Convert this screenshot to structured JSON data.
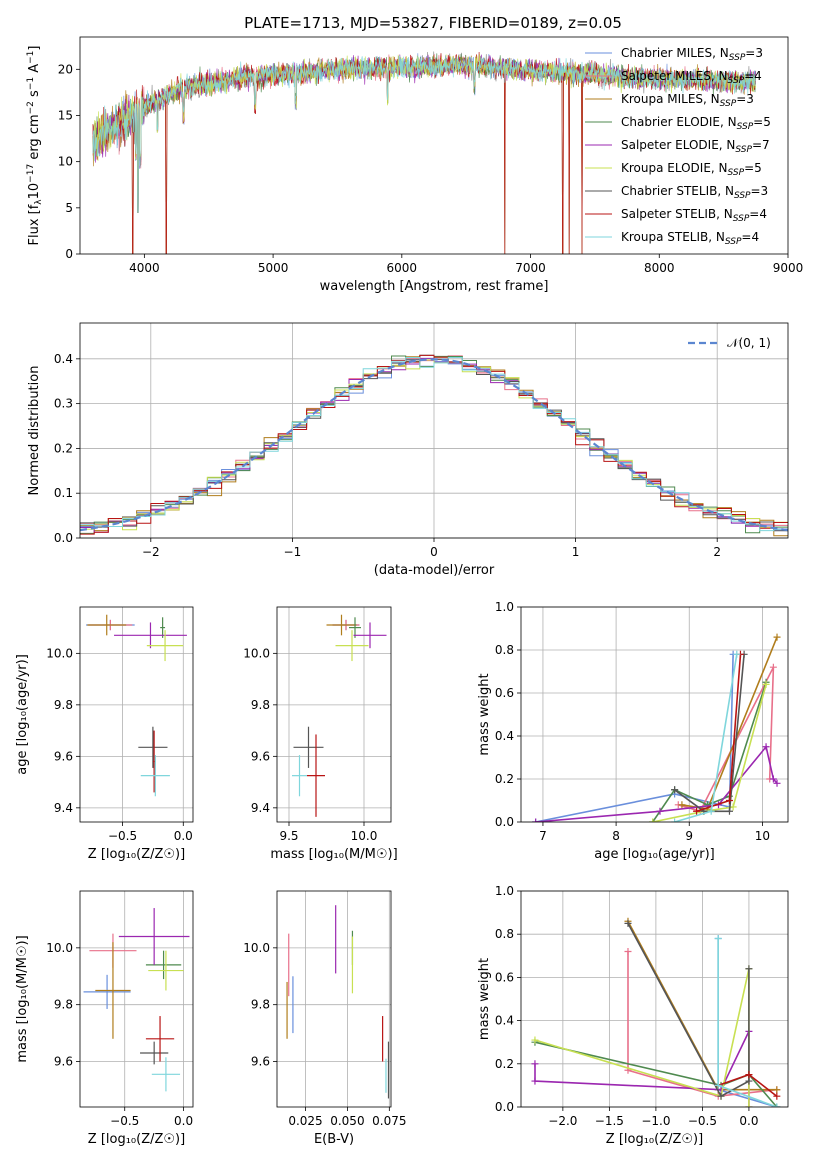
{
  "figure_title": "PLATE=1713, MJD=53827, FIBERID=0189, z=0.05",
  "series": [
    {
      "key": "chab_miles",
      "label": "Chabrier MILES, N",
      "sub": "SSP",
      "tail": "=3",
      "color": "#6a8fdc"
    },
    {
      "key": "salp_miles",
      "label": "Salpeter MILES, N",
      "sub": "SSP",
      "tail": "=4",
      "color": "#e8708a"
    },
    {
      "key": "krou_miles",
      "label": "Kroupa MILES, N",
      "sub": "SSP",
      "tail": "=3",
      "color": "#b07d1c"
    },
    {
      "key": "chab_elodie",
      "label": "Chabrier ELODIE, N",
      "sub": "SSP",
      "tail": "=5",
      "color": "#4f8a4f"
    },
    {
      "key": "salp_elodie",
      "label": "Salpeter ELODIE, N",
      "sub": "SSP",
      "tail": "=7",
      "color": "#9b27b0"
    },
    {
      "key": "krou_elodie",
      "label": "Kroupa ELODIE, N",
      "sub": "SSP",
      "tail": "=5",
      "color": "#c8e052"
    },
    {
      "key": "chab_stelib",
      "label": "Chabrier STELIB, N",
      "sub": "SSP",
      "tail": "=3",
      "color": "#555555"
    },
    {
      "key": "salp_stelib",
      "label": "Salpeter STELIB, N",
      "sub": "SSP",
      "tail": "=4",
      "color": "#b81414"
    },
    {
      "key": "krou_stelib",
      "label": "Kroupa STELIB, N",
      "sub": "SSP",
      "tail": "=4",
      "color": "#7fd6dc"
    }
  ],
  "normal_label": "𝒩(0, 1)",
  "normal_color": "#5b86d0",
  "chart_data": [
    {
      "id": "spectrum",
      "type": "line",
      "xlabel": "wavelength [Angstrom, rest frame]",
      "ylabel": "Flux [f_λ 10^-17 erg cm^-2 s^-1 A^-1]",
      "xlim": [
        3500,
        9000
      ],
      "ylim": [
        0,
        23.5
      ],
      "xticks": [
        4000,
        5000,
        6000,
        7000,
        8000,
        9000
      ],
      "yticks": [
        0,
        5,
        10,
        15,
        20
      ],
      "grid": false,
      "legend": "right",
      "data_range": [
        3600,
        8750
      ],
      "continuum": [
        [
          3600,
          12
        ],
        [
          3800,
          14
        ],
        [
          4000,
          16
        ],
        [
          4300,
          18
        ],
        [
          4800,
          19.2
        ],
        [
          5500,
          20
        ],
        [
          6500,
          20.5
        ],
        [
          7200,
          19.7
        ],
        [
          8000,
          19
        ],
        [
          8750,
          18.6
        ]
      ],
      "absorption": [
        [
          3934,
          10
        ],
        [
          3969,
          9
        ],
        [
          4102,
          13
        ],
        [
          4305,
          14
        ],
        [
          4861,
          15
        ],
        [
          5175,
          15.5
        ],
        [
          5890,
          16
        ],
        [
          6563,
          17
        ]
      ],
      "gaps": [
        [
          3910,
          0
        ],
        [
          3950,
          4.5
        ],
        [
          4170,
          0
        ],
        [
          6800,
          0
        ],
        [
          7250,
          0
        ],
        [
          7300,
          0
        ],
        [
          7400,
          0
        ]
      ]
    },
    {
      "id": "residuals",
      "type": "step",
      "xlabel": "(data-model)/error",
      "ylabel": "Normed distribution",
      "xlim": [
        -2.5,
        2.5
      ],
      "ylim": [
        0,
        0.48
      ],
      "xticks": [
        -2,
        -1,
        0,
        1,
        2
      ],
      "yticks": [
        0.0,
        0.1,
        0.2,
        0.3,
        0.4
      ],
      "grid": true,
      "legend": "top-right",
      "bin_width": 0.1
    },
    {
      "id": "age_Z",
      "type": "errorbar",
      "xlabel": "Z [log₁₀(Z/Z☉)]",
      "ylabel": "age  [log₁₀(age/yr)]",
      "xlim": [
        -0.85,
        0.08
      ],
      "ylim": [
        9.345,
        10.18
      ],
      "xticks": [
        -0.5,
        0.0
      ],
      "yticks": [
        9.4,
        9.6,
        9.8,
        10.0
      ],
      "grid": true,
      "points": [
        {
          "s": "chab_miles",
          "x": -0.6,
          "y": 10.11,
          "xe": 0.2,
          "ye": 0.02
        },
        {
          "s": "salp_miles",
          "x": -0.6,
          "y": 10.11,
          "xe": 0.18,
          "ye": 0.02
        },
        {
          "s": "krou_miles",
          "x": -0.63,
          "y": 10.11,
          "xe": 0.16,
          "ye": 0.04
        },
        {
          "s": "chab_elodie",
          "x": -0.17,
          "y": 10.1,
          "xe": 0.02,
          "ye": 0.04
        },
        {
          "s": "salp_elodie",
          "x": -0.27,
          "y": 10.07,
          "xe": 0.3,
          "ye": 0.05
        },
        {
          "s": "krou_elodie",
          "x": -0.15,
          "y": 10.03,
          "xe": 0.15,
          "ye": 0.06
        },
        {
          "s": "chab_stelib",
          "x": -0.25,
          "y": 9.635,
          "xe": 0.12,
          "ye": 0.08
        },
        {
          "s": "salp_stelib",
          "x": -0.24,
          "y": 9.58,
          "xe": 0.01,
          "ye": 0.12
        },
        {
          "s": "krou_stelib",
          "x": -0.23,
          "y": 9.525,
          "xe": 0.12,
          "ye": 0.08
        }
      ]
    },
    {
      "id": "age_mass",
      "type": "errorbar",
      "xlabel": "mass [log₁₀(M/M☉)]",
      "ylabel": "",
      "xlim": [
        9.42,
        10.18
      ],
      "ylim": [
        9.345,
        10.18
      ],
      "xticks": [
        9.5,
        10.0
      ],
      "yticks": [
        9.4,
        9.6,
        9.8,
        10.0
      ],
      "grid": true,
      "points": [
        {
          "s": "chab_miles",
          "x": 9.88,
          "y": 10.11,
          "xe": 0.09,
          "ye": 0.02
        },
        {
          "s": "salp_miles",
          "x": 9.88,
          "y": 10.11,
          "xe": 0.09,
          "ye": 0.02
        },
        {
          "s": "krou_miles",
          "x": 9.85,
          "y": 10.11,
          "xe": 0.1,
          "ye": 0.04
        },
        {
          "s": "chab_elodie",
          "x": 9.94,
          "y": 10.1,
          "xe": 0.04,
          "ye": 0.04
        },
        {
          "s": "salp_elodie",
          "x": 10.04,
          "y": 10.07,
          "xe": 0.11,
          "ye": 0.05
        },
        {
          "s": "krou_elodie",
          "x": 9.92,
          "y": 10.03,
          "xe": 0.11,
          "ye": 0.06
        },
        {
          "s": "chab_stelib",
          "x": 9.63,
          "y": 9.635,
          "xe": 0.1,
          "ye": 0.08
        },
        {
          "s": "salp_stelib",
          "x": 9.68,
          "y": 9.525,
          "xe": 0.06,
          "ye": 0.16
        },
        {
          "s": "krou_stelib",
          "x": 9.57,
          "y": 9.525,
          "xe": 0.05,
          "ye": 0.08
        }
      ]
    },
    {
      "id": "mw_age",
      "type": "line",
      "xlabel": "age  [log₁₀(age/yr)]",
      "ylabel": "mass weight",
      "xlim": [
        6.7,
        10.35
      ],
      "ylim": [
        0,
        1.0
      ],
      "xticks": [
        7,
        8,
        9,
        10
      ],
      "yticks": [
        0.0,
        0.2,
        0.4,
        0.6,
        0.8,
        1.0
      ],
      "grid": true,
      "lines": [
        {
          "s": "chab_miles",
          "pts": [
            [
              6.9,
              0.0
            ],
            [
              8.8,
              0.13
            ],
            [
              9.55,
              0.07
            ],
            [
              9.6,
              0.78
            ]
          ]
        },
        {
          "s": "salp_miles",
          "pts": [
            [
              8.85,
              0.08
            ],
            [
              9.15,
              0.05
            ],
            [
              10.15,
              0.72
            ],
            [
              10.1,
              0.2
            ]
          ]
        },
        {
          "s": "krou_miles",
          "pts": [
            [
              8.9,
              0.08
            ],
            [
              9.25,
              0.06
            ],
            [
              10.2,
              0.86
            ]
          ]
        },
        {
          "s": "chab_elodie",
          "pts": [
            [
              8.5,
              0.0
            ],
            [
              8.8,
              0.15
            ],
            [
              9.25,
              0.08
            ],
            [
              9.55,
              0.12
            ],
            [
              10.05,
              0.65
            ]
          ]
        },
        {
          "s": "salp_elodie",
          "pts": [
            [
              6.9,
              0.0
            ],
            [
              8.6,
              0.05
            ],
            [
              9.4,
              0.08
            ],
            [
              10.05,
              0.35
            ],
            [
              10.15,
              0.2
            ],
            [
              10.2,
              0.18
            ]
          ]
        },
        {
          "s": "krou_elodie",
          "pts": [
            [
              8.5,
              0.0
            ],
            [
              9.2,
              0.05
            ],
            [
              9.6,
              0.07
            ],
            [
              10.05,
              0.64
            ]
          ]
        },
        {
          "s": "chab_stelib",
          "pts": [
            [
              8.8,
              0.15
            ],
            [
              9.2,
              0.05
            ],
            [
              9.55,
              0.05
            ],
            [
              9.75,
              0.78
            ]
          ]
        },
        {
          "s": "salp_stelib",
          "pts": [
            [
              9.1,
              0.05
            ],
            [
              9.55,
              0.1
            ],
            [
              9.7,
              0.78
            ]
          ]
        },
        {
          "s": "krou_stelib",
          "pts": [
            [
              8.8,
              0.0
            ],
            [
              9.3,
              0.05
            ],
            [
              9.65,
              0.78
            ]
          ]
        }
      ]
    },
    {
      "id": "mass_Z",
      "type": "errorbar",
      "xlabel": "Z [log₁₀(Z/Z☉)]",
      "ylabel": "mass [log₁₀(M/M☉)]",
      "xlim": [
        -0.88,
        0.08
      ],
      "ylim": [
        9.44,
        10.2
      ],
      "xticks": [
        -0.5,
        0.0
      ],
      "yticks": [
        9.6,
        9.8,
        10.0
      ],
      "grid": true,
      "points": [
        {
          "s": "chab_miles",
          "x": -0.65,
          "y": 9.845,
          "xe": 0.2,
          "ye": 0.06
        },
        {
          "s": "salp_miles",
          "x": -0.6,
          "y": 9.99,
          "xe": 0.2,
          "ye": 0.06
        },
        {
          "s": "krou_miles",
          "x": -0.6,
          "y": 9.85,
          "xe": 0.15,
          "ye": 0.17
        },
        {
          "s": "chab_elodie",
          "x": -0.17,
          "y": 9.94,
          "xe": 0.15,
          "ye": 0.05
        },
        {
          "s": "salp_elodie",
          "x": -0.25,
          "y": 10.04,
          "xe": 0.3,
          "ye": 0.1
        },
        {
          "s": "krou_elodie",
          "x": -0.15,
          "y": 9.92,
          "xe": 0.15,
          "ye": 0.07
        },
        {
          "s": "chab_stelib",
          "x": -0.25,
          "y": 9.63,
          "xe": 0.12,
          "ye": 0.04
        },
        {
          "s": "salp_stelib",
          "x": -0.2,
          "y": 9.68,
          "xe": 0.12,
          "ye": 0.08
        },
        {
          "s": "krou_stelib",
          "x": -0.15,
          "y": 9.555,
          "xe": 0.12,
          "ye": 0.06
        }
      ]
    },
    {
      "id": "mass_EBV",
      "type": "errorbar",
      "xlabel": "E(B-V)",
      "ylabel": "",
      "xlim": [
        0.008,
        0.076
      ],
      "ylim": [
        9.44,
        10.2
      ],
      "xticks": [
        0.025,
        0.05,
        0.075
      ],
      "xtick_labels": [
        "0.025",
        "0.050",
        "0.075"
      ],
      "yticks": [
        9.6,
        9.8,
        10.0
      ],
      "grid": true,
      "points": [
        {
          "s": "chab_miles",
          "x": 0.0175,
          "y": 9.8,
          "xe": 0,
          "ye": 0.1
        },
        {
          "s": "salp_miles",
          "x": 0.015,
          "y": 9.94,
          "xe": 0,
          "ye": 0.11
        },
        {
          "s": "krou_miles",
          "x": 0.014,
          "y": 9.78,
          "xe": 0,
          "ye": 0.1
        },
        {
          "s": "chab_elodie",
          "x": 0.053,
          "y": 10.0,
          "xe": 0,
          "ye": 0.06
        },
        {
          "s": "salp_elodie",
          "x": 0.043,
          "y": 10.03,
          "xe": 0,
          "ye": 0.12
        },
        {
          "s": "krou_elodie",
          "x": 0.053,
          "y": 9.94,
          "xe": 0,
          "ye": 0.1
        },
        {
          "s": "chab_stelib",
          "x": 0.0745,
          "y": 9.57,
          "xe": 0,
          "ye": 0.1
        },
        {
          "s": "salp_stelib",
          "x": 0.071,
          "y": 9.68,
          "xe": 0,
          "ye": 0.08
        },
        {
          "s": "krou_stelib",
          "x": 0.073,
          "y": 9.55,
          "xe": 0,
          "ye": 0.06
        }
      ]
    },
    {
      "id": "mw_Z",
      "type": "line",
      "xlabel": "Z [log₁₀(Z/Z☉)]",
      "ylabel": "mass weight",
      "xlim": [
        -2.45,
        0.42
      ],
      "ylim": [
        0,
        1.0
      ],
      "xticks": [
        -2.0,
        -1.5,
        -1.0,
        -0.5,
        0.0
      ],
      "yticks": [
        0.0,
        0.2,
        0.4,
        0.6,
        0.8,
        1.0
      ],
      "grid": true,
      "lines": [
        {
          "s": "chab_miles",
          "pts": [
            [
              -0.33,
              0.78
            ],
            [
              -0.33,
              0.08
            ],
            [
              0.3,
              0.0
            ]
          ]
        },
        {
          "s": "salp_miles",
          "pts": [
            [
              -1.3,
              0.72
            ],
            [
              -1.3,
              0.17
            ],
            [
              -0.33,
              0.05
            ],
            [
              0.3,
              0.08
            ]
          ]
        },
        {
          "s": "krou_miles",
          "pts": [
            [
              -1.3,
              0.86
            ],
            [
              -0.33,
              0.08
            ],
            [
              0.3,
              0.08
            ]
          ]
        },
        {
          "s": "chab_elodie",
          "pts": [
            [
              -2.3,
              0.3
            ],
            [
              -0.3,
              0.1
            ],
            [
              0.0,
              0.15
            ],
            [
              0.3,
              0.0
            ]
          ]
        },
        {
          "s": "salp_elodie",
          "pts": [
            [
              -2.3,
              0.2
            ],
            [
              -2.3,
              0.12
            ],
            [
              -0.3,
              0.08
            ],
            [
              0.0,
              0.35
            ],
            [
              0.0,
              0.0
            ]
          ]
        },
        {
          "s": "krou_elodie",
          "pts": [
            [
              -2.3,
              0.31
            ],
            [
              -0.3,
              0.05
            ],
            [
              0.0,
              0.64
            ],
            [
              0.0,
              0.0
            ]
          ]
        },
        {
          "s": "chab_stelib",
          "pts": [
            [
              -1.3,
              0.85
            ],
            [
              -0.3,
              0.05
            ],
            [
              0.0,
              0.12
            ],
            [
              0.0,
              0.64
            ]
          ]
        },
        {
          "s": "salp_stelib",
          "pts": [
            [
              -0.33,
              0.1
            ],
            [
              0.0,
              0.15
            ],
            [
              0.3,
              0.05
            ]
          ]
        },
        {
          "s": "krou_stelib",
          "pts": [
            [
              -0.33,
              0.78
            ],
            [
              -0.33,
              0.1
            ],
            [
              0.3,
              0.0
            ]
          ]
        }
      ]
    }
  ]
}
